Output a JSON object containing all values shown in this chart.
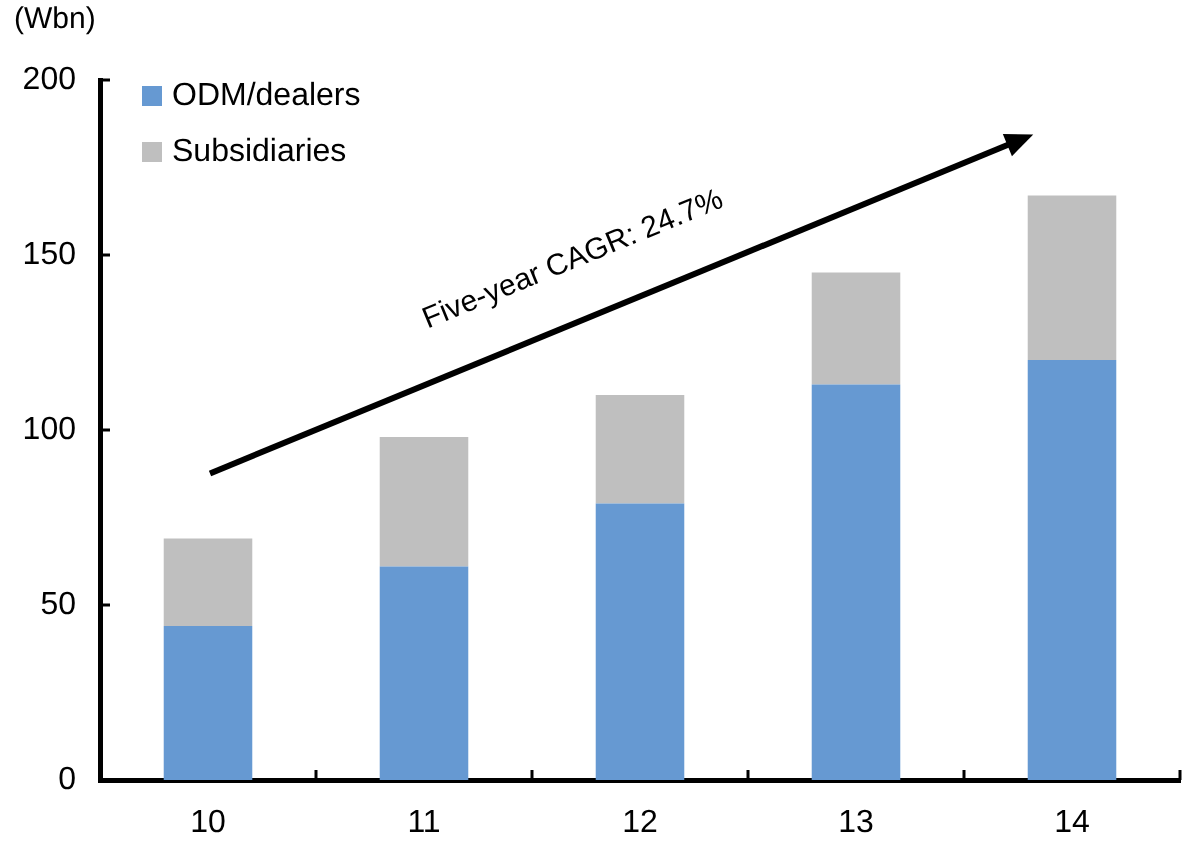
{
  "chart_data": {
    "type": "bar",
    "ylabel": "(Wbn)",
    "annotations": [
      "Five-year CAGR: 24.7%"
    ],
    "categories": [
      "10",
      "11",
      "12",
      "13",
      "14"
    ],
    "series": [
      {
        "name": "ODM/dealers",
        "color": "#6699d2",
        "values": [
          44,
          61,
          79,
          113,
          120
        ]
      },
      {
        "name": "Subsidiaries",
        "color": "#bfbfbf",
        "values": [
          25,
          37,
          31,
          32,
          47
        ]
      }
    ],
    "stacked": true,
    "ylim": [
      0,
      200
    ],
    "yticks": [
      0,
      50,
      100,
      150,
      200
    ],
    "grid": false,
    "legend": "top left"
  }
}
